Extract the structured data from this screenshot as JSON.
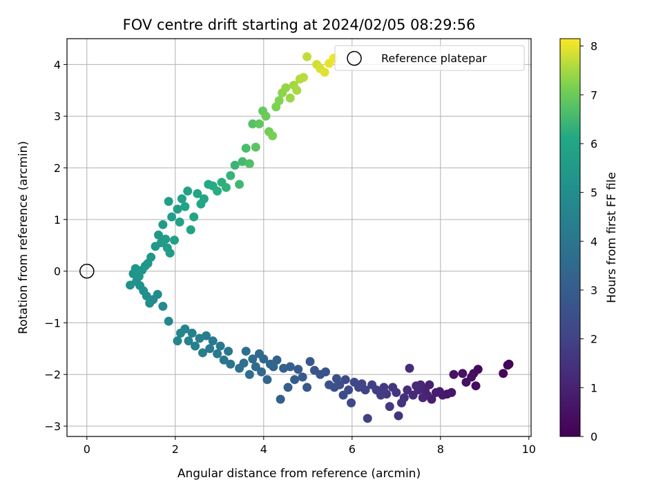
{
  "chart_data": {
    "type": "scatter",
    "title": "FOV centre drift starting at 2024/02/05 08:29:56",
    "xlabel": "Angular distance from reference (arcmin)",
    "ylabel": "Rotation from reference (arcmin)",
    "xlim": [
      -0.45,
      10.05
    ],
    "ylim": [
      -3.2,
      4.5
    ],
    "xticks": [
      0,
      2,
      4,
      6,
      8,
      10
    ],
    "xtick_labels": [
      "0",
      "2",
      "4",
      "6",
      "8",
      "10"
    ],
    "yticks": [
      -3,
      -2,
      -1,
      0,
      1,
      2,
      3,
      4
    ],
    "ytick_labels": [
      "−3",
      "−2",
      "−1",
      "0",
      "1",
      "2",
      "3",
      "4"
    ],
    "grid": true,
    "legend": {
      "placement": "top-right",
      "entries": [
        "Reference platepar"
      ]
    },
    "reference_point": {
      "x": 0,
      "y": 0,
      "marker": "open-circle"
    },
    "colorbar": {
      "label": "Hours from first FF file",
      "colormap": "viridis",
      "range": [
        0,
        8.15
      ],
      "ticks": [
        0,
        1,
        2,
        3,
        4,
        5,
        6,
        7,
        8
      ],
      "tick_labels": [
        "0",
        "1",
        "2",
        "3",
        "4",
        "5",
        "6",
        "7",
        "8"
      ]
    },
    "color_encoding": "hours",
    "series": [
      {
        "color_by": "hours",
        "points": [
          {
            "x": 9.55,
            "y": -1.8,
            "hours": 0.05
          },
          {
            "x": 9.52,
            "y": -1.82,
            "hours": 0.1
          },
          {
            "x": 9.42,
            "y": -1.98,
            "hours": 0.15
          },
          {
            "x": 8.85,
            "y": -1.9,
            "hours": 0.25
          },
          {
            "x": 8.8,
            "y": -2.22,
            "hours": 0.3
          },
          {
            "x": 8.75,
            "y": -1.98,
            "hours": 0.35
          },
          {
            "x": 8.7,
            "y": -2.05,
            "hours": 0.4
          },
          {
            "x": 8.58,
            "y": -2.15,
            "hours": 0.45
          },
          {
            "x": 8.5,
            "y": -1.98,
            "hours": 0.5
          },
          {
            "x": 8.3,
            "y": -2.0,
            "hours": 0.55
          },
          {
            "x": 8.25,
            "y": -2.35,
            "hours": 0.6
          },
          {
            "x": 8.15,
            "y": -2.38,
            "hours": 0.65
          },
          {
            "x": 8.05,
            "y": -2.4,
            "hours": 0.7
          },
          {
            "x": 7.98,
            "y": -2.33,
            "hours": 0.75
          },
          {
            "x": 7.9,
            "y": -2.35,
            "hours": 0.8
          },
          {
            "x": 7.8,
            "y": -2.48,
            "hours": 0.85
          },
          {
            "x": 7.75,
            "y": -2.2,
            "hours": 0.9
          },
          {
            "x": 7.7,
            "y": -2.4,
            "hours": 0.95
          },
          {
            "x": 7.65,
            "y": -2.3,
            "hours": 1.0
          },
          {
            "x": 7.6,
            "y": -2.45,
            "hours": 1.05
          },
          {
            "x": 7.55,
            "y": -2.2,
            "hours": 1.1
          },
          {
            "x": 7.5,
            "y": -2.3,
            "hours": 1.15
          },
          {
            "x": 7.45,
            "y": -2.22,
            "hours": 1.2
          },
          {
            "x": 7.38,
            "y": -2.4,
            "hours": 1.25
          },
          {
            "x": 7.3,
            "y": -1.88,
            "hours": 1.3
          },
          {
            "x": 7.25,
            "y": -2.3,
            "hours": 1.35
          },
          {
            "x": 7.18,
            "y": -2.45,
            "hours": 1.4
          },
          {
            "x": 7.12,
            "y": -2.55,
            "hours": 1.45
          },
          {
            "x": 7.05,
            "y": -2.8,
            "hours": 1.5
          },
          {
            "x": 7.0,
            "y": -2.35,
            "hours": 1.55
          },
          {
            "x": 6.92,
            "y": -2.25,
            "hours": 1.6
          },
          {
            "x": 6.85,
            "y": -2.62,
            "hours": 1.65
          },
          {
            "x": 6.78,
            "y": -2.38,
            "hours": 1.7
          },
          {
            "x": 6.72,
            "y": -2.25,
            "hours": 1.75
          },
          {
            "x": 6.65,
            "y": -2.4,
            "hours": 1.8
          },
          {
            "x": 6.55,
            "y": -2.3,
            "hours": 1.85
          },
          {
            "x": 6.45,
            "y": -2.2,
            "hours": 1.9
          },
          {
            "x": 6.35,
            "y": -2.85,
            "hours": 1.95
          },
          {
            "x": 6.3,
            "y": -2.3,
            "hours": 2.0
          },
          {
            "x": 6.22,
            "y": -2.18,
            "hours": 2.05
          },
          {
            "x": 6.15,
            "y": -2.25,
            "hours": 2.1
          },
          {
            "x": 6.05,
            "y": -2.15,
            "hours": 2.15
          },
          {
            "x": 5.98,
            "y": -2.55,
            "hours": 2.2
          },
          {
            "x": 5.92,
            "y": -2.3,
            "hours": 2.25
          },
          {
            "x": 5.85,
            "y": -2.1,
            "hours": 2.3
          },
          {
            "x": 5.8,
            "y": -2.4,
            "hours": 2.35
          },
          {
            "x": 5.72,
            "y": -2.2,
            "hours": 2.4
          },
          {
            "x": 5.65,
            "y": -2.08,
            "hours": 2.45
          },
          {
            "x": 5.6,
            "y": -2.25,
            "hours": 2.5
          },
          {
            "x": 5.48,
            "y": -2.2,
            "hours": 2.55
          },
          {
            "x": 5.4,
            "y": -1.95,
            "hours": 2.6
          },
          {
            "x": 5.28,
            "y": -2.0,
            "hours": 2.65
          },
          {
            "x": 5.15,
            "y": -1.92,
            "hours": 2.7
          },
          {
            "x": 5.05,
            "y": -1.75,
            "hours": 2.75
          },
          {
            "x": 4.98,
            "y": -2.25,
            "hours": 2.8
          },
          {
            "x": 4.88,
            "y": -2.05,
            "hours": 2.85
          },
          {
            "x": 4.78,
            "y": -1.9,
            "hours": 2.9
          },
          {
            "x": 4.7,
            "y": -2.1,
            "hours": 2.95
          },
          {
            "x": 4.6,
            "y": -1.85,
            "hours": 3.0
          },
          {
            "x": 4.55,
            "y": -2.25,
            "hours": 3.05
          },
          {
            "x": 4.45,
            "y": -1.88,
            "hours": 3.1
          },
          {
            "x": 4.38,
            "y": -2.48,
            "hours": 3.15
          },
          {
            "x": 4.3,
            "y": -1.72,
            "hours": 3.2
          },
          {
            "x": 4.22,
            "y": -1.85,
            "hours": 3.25
          },
          {
            "x": 4.15,
            "y": -1.8,
            "hours": 3.3
          },
          {
            "x": 4.08,
            "y": -2.1,
            "hours": 3.35
          },
          {
            "x": 4.0,
            "y": -1.7,
            "hours": 3.4
          },
          {
            "x": 3.95,
            "y": -1.95,
            "hours": 3.45
          },
          {
            "x": 3.9,
            "y": -1.6,
            "hours": 3.5
          },
          {
            "x": 3.82,
            "y": -1.85,
            "hours": 3.55
          },
          {
            "x": 3.75,
            "y": -1.7,
            "hours": 3.6
          },
          {
            "x": 3.68,
            "y": -2.0,
            "hours": 3.65
          },
          {
            "x": 3.6,
            "y": -1.55,
            "hours": 3.7
          },
          {
            "x": 3.55,
            "y": -1.78,
            "hours": 3.75
          },
          {
            "x": 3.45,
            "y": -1.88,
            "hours": 3.8
          },
          {
            "x": 3.25,
            "y": -1.8,
            "hours": 3.9
          },
          {
            "x": 3.2,
            "y": -1.55,
            "hours": 3.95
          },
          {
            "x": 3.1,
            "y": -1.72,
            "hours": 4.0
          },
          {
            "x": 3.02,
            "y": -1.45,
            "hours": 4.05
          },
          {
            "x": 2.95,
            "y": -1.6,
            "hours": 4.1
          },
          {
            "x": 2.85,
            "y": -1.35,
            "hours": 4.15
          },
          {
            "x": 2.78,
            "y": -1.5,
            "hours": 4.2
          },
          {
            "x": 2.7,
            "y": -1.25,
            "hours": 4.25
          },
          {
            "x": 2.62,
            "y": -1.58,
            "hours": 4.3
          },
          {
            "x": 2.55,
            "y": -1.3,
            "hours": 4.35
          },
          {
            "x": 2.45,
            "y": -1.45,
            "hours": 4.4
          },
          {
            "x": 2.38,
            "y": -1.2,
            "hours": 4.45
          },
          {
            "x": 2.3,
            "y": -1.35,
            "hours": 4.5
          },
          {
            "x": 2.22,
            "y": -1.12,
            "hours": 4.55
          },
          {
            "x": 2.12,
            "y": -1.2,
            "hours": 4.6
          },
          {
            "x": 2.05,
            "y": -1.35,
            "hours": 4.65
          },
          {
            "x": 1.85,
            "y": -0.97,
            "hours": 4.75
          },
          {
            "x": 1.72,
            "y": -0.68,
            "hours": 4.8
          },
          {
            "x": 1.6,
            "y": -0.45,
            "hours": 4.85
          },
          {
            "x": 1.5,
            "y": -0.55,
            "hours": 4.9
          },
          {
            "x": 1.42,
            "y": -0.62,
            "hours": 4.95
          },
          {
            "x": 1.35,
            "y": -0.48,
            "hours": 5.0
          },
          {
            "x": 1.28,
            "y": -0.38,
            "hours": 5.05
          },
          {
            "x": 1.2,
            "y": -0.28,
            "hours": 5.1
          },
          {
            "x": 1.12,
            "y": -0.2,
            "hours": 5.15
          },
          {
            "x": 1.05,
            "y": -0.05,
            "hours": 5.2
          },
          {
            "x": 0.98,
            "y": -0.27,
            "hours": 5.2
          },
          {
            "x": 1.1,
            "y": 0.05,
            "hours": 5.25
          },
          {
            "x": 1.18,
            "y": -0.1,
            "hours": 5.28
          },
          {
            "x": 1.25,
            "y": 0.02,
            "hours": 5.3
          },
          {
            "x": 1.32,
            "y": 0.1,
            "hours": 5.32
          },
          {
            "x": 1.38,
            "y": 0.15,
            "hours": 5.35
          },
          {
            "x": 1.45,
            "y": 0.27,
            "hours": 5.38
          },
          {
            "x": 1.55,
            "y": 0.48,
            "hours": 5.42
          },
          {
            "x": 1.62,
            "y": 0.7,
            "hours": 5.46
          },
          {
            "x": 1.68,
            "y": 0.55,
            "hours": 5.5
          },
          {
            "x": 1.72,
            "y": 0.9,
            "hours": 5.54
          },
          {
            "x": 1.78,
            "y": 0.62,
            "hours": 5.57
          },
          {
            "x": 1.82,
            "y": 0.45,
            "hours": 5.6
          },
          {
            "x": 1.88,
            "y": 0.35,
            "hours": 5.63
          },
          {
            "x": 1.92,
            "y": 1.05,
            "hours": 5.66
          },
          {
            "x": 1.98,
            "y": 0.6,
            "hours": 5.7
          },
          {
            "x": 1.85,
            "y": 1.35,
            "hours": 5.73
          },
          {
            "x": 2.05,
            "y": 1.2,
            "hours": 5.76
          },
          {
            "x": 2.1,
            "y": 0.95,
            "hours": 5.8
          },
          {
            "x": 2.15,
            "y": 1.4,
            "hours": 5.83
          },
          {
            "x": 2.22,
            "y": 1.25,
            "hours": 5.86
          },
          {
            "x": 2.28,
            "y": 1.55,
            "hours": 5.9
          },
          {
            "x": 2.35,
            "y": 0.8,
            "hours": 5.93
          },
          {
            "x": 2.42,
            "y": 1.05,
            "hours": 5.96
          },
          {
            "x": 2.5,
            "y": 1.5,
            "hours": 6.0
          },
          {
            "x": 2.58,
            "y": 1.3,
            "hours": 6.03
          },
          {
            "x": 2.65,
            "y": 1.4,
            "hours": 6.06
          },
          {
            "x": 2.75,
            "y": 1.68,
            "hours": 6.1
          },
          {
            "x": 2.85,
            "y": 1.65,
            "hours": 6.15
          },
          {
            "x": 2.95,
            "y": 1.55,
            "hours": 6.2
          },
          {
            "x": 3.05,
            "y": 1.72,
            "hours": 6.25
          },
          {
            "x": 3.15,
            "y": 1.62,
            "hours": 6.3
          },
          {
            "x": 3.25,
            "y": 1.85,
            "hours": 6.35
          },
          {
            "x": 3.35,
            "y": 2.05,
            "hours": 6.42
          },
          {
            "x": 3.45,
            "y": 1.68,
            "hours": 6.48
          },
          {
            "x": 3.52,
            "y": 2.12,
            "hours": 6.54
          },
          {
            "x": 3.6,
            "y": 2.38,
            "hours": 6.6
          },
          {
            "x": 3.68,
            "y": 2.08,
            "hours": 6.66
          },
          {
            "x": 3.75,
            "y": 2.85,
            "hours": 6.72
          },
          {
            "x": 3.82,
            "y": 2.4,
            "hours": 6.78
          },
          {
            "x": 3.9,
            "y": 2.85,
            "hours": 6.84
          },
          {
            "x": 3.98,
            "y": 3.1,
            "hours": 6.9
          },
          {
            "x": 4.05,
            "y": 3.0,
            "hours": 6.96
          },
          {
            "x": 4.12,
            "y": 2.7,
            "hours": 7.02
          },
          {
            "x": 4.2,
            "y": 2.62,
            "hours": 7.08
          },
          {
            "x": 4.28,
            "y": 3.18,
            "hours": 7.14
          },
          {
            "x": 4.35,
            "y": 3.3,
            "hours": 7.2
          },
          {
            "x": 4.42,
            "y": 3.45,
            "hours": 7.26
          },
          {
            "x": 4.5,
            "y": 3.55,
            "hours": 7.32
          },
          {
            "x": 4.6,
            "y": 3.35,
            "hours": 7.38
          },
          {
            "x": 4.68,
            "y": 3.6,
            "hours": 7.44
          },
          {
            "x": 4.75,
            "y": 3.5,
            "hours": 7.5
          },
          {
            "x": 4.82,
            "y": 3.72,
            "hours": 7.56
          },
          {
            "x": 4.9,
            "y": 3.75,
            "hours": 7.62
          },
          {
            "x": 4.98,
            "y": 4.15,
            "hours": 7.7
          },
          {
            "x": 5.2,
            "y": 4.0,
            "hours": 7.8
          },
          {
            "x": 5.28,
            "y": 3.92,
            "hours": 7.86
          },
          {
            "x": 5.38,
            "y": 3.85,
            "hours": 7.92
          },
          {
            "x": 5.48,
            "y": 4.02,
            "hours": 7.98
          },
          {
            "x": 5.58,
            "y": 4.12,
            "hours": 8.05
          }
        ]
      }
    ]
  }
}
